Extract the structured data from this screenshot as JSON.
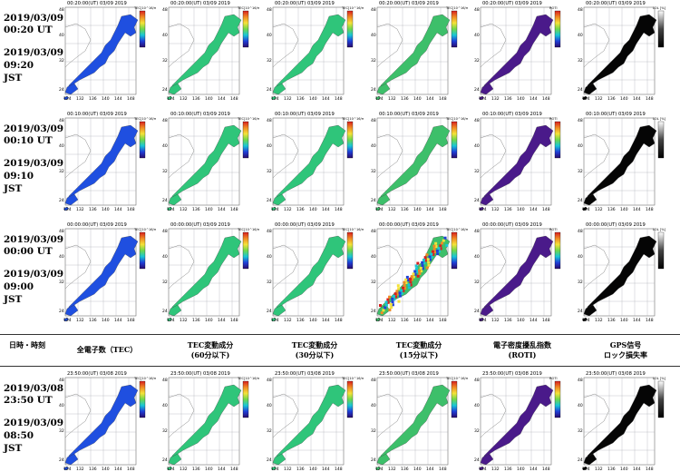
{
  "header": {
    "col0": "日時・時刻",
    "col1": "全電子数（TEC）",
    "col2": [
      "TEC変動成分",
      "(60分以下)"
    ],
    "col3": [
      "TEC変動成分",
      "(30分以下)"
    ],
    "col4": [
      "TEC変動成分",
      "(15分以下)"
    ],
    "col5": [
      "電子密度擾乱指数",
      "(ROTI)"
    ],
    "col6": [
      "GPS信号",
      "ロック損失率"
    ]
  },
  "rows": [
    {
      "utc_date": "2019/03/09",
      "utc_time": "00:20 UT",
      "jst_date": "2019/03/09",
      "jst_time": "09:20",
      "jst_label": "JST",
      "map_time": "00:20:00(UT) 03/09 2019"
    },
    {
      "utc_date": "2019/03/09",
      "utc_time": "00:10 UT",
      "jst_date": "2019/03/09",
      "jst_time": "09:10",
      "jst_label": "JST",
      "map_time": "00:10:00(UT) 03/09 2019"
    },
    {
      "utc_date": "2019/03/09",
      "utc_time": "00:00 UT",
      "jst_date": "2019/03/09",
      "jst_time": "09:00",
      "jst_label": "JST",
      "map_time": "00:00:00(UT) 03/09 2019"
    },
    {
      "utc_date": "2019/03/08",
      "utc_time": "23:50 UT",
      "jst_date": "2019/03/09",
      "jst_time": "08:50",
      "jst_label": "JST",
      "map_time": "23:50:00(UT) 03/08 2019"
    }
  ],
  "map_labels": {
    "lat": [
      "48",
      "40",
      "32",
      "24"
    ],
    "lon": [
      "124",
      "132",
      "136",
      "140",
      "144",
      "148"
    ]
  },
  "colorbar_labels": {
    "tec": "TEC[10^16/m^2]",
    "roti": "ROTI",
    "loss": "LOL [%]"
  },
  "colors": {
    "tec_fill": "#1f4fe0",
    "dtec_fill": "#2fc57a",
    "dtec15_fill": "#3dbf6a",
    "roti_fill": "#4a1a8a",
    "loss_fill": "#050505",
    "grid": "#9aa0a6"
  }
}
